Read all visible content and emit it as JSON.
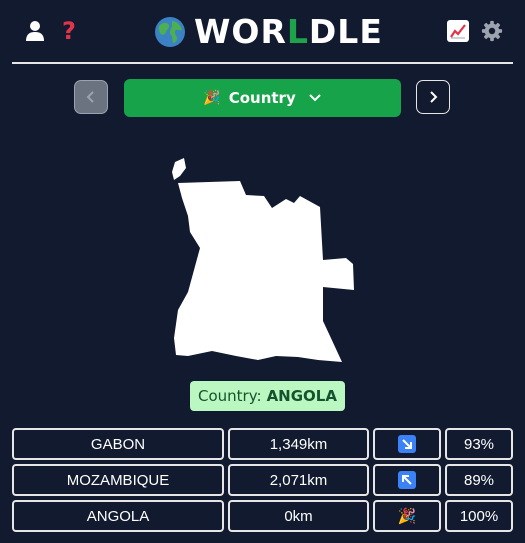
{
  "header": {
    "title_prefix": "WOR",
    "title_highlight": "L",
    "title_suffix": "DLE",
    "help_label": "?"
  },
  "nav": {
    "mode_emoji": "🎉",
    "mode_label": "Country"
  },
  "answer": {
    "label": "Country:",
    "value": "ANGOLA"
  },
  "guesses": [
    {
      "name": "GABON",
      "distance": "1,349km",
      "direction": "south-east-arrow-icon",
      "proximity": "93%"
    },
    {
      "name": "MOZAMBIQUE",
      "distance": "2,071km",
      "direction": "north-west-arrow-icon",
      "proximity": "89%"
    },
    {
      "name": "ANGOLA",
      "distance": "0km",
      "direction_emoji": "🎉",
      "proximity": "100%"
    }
  ],
  "colors": {
    "background": "#111a2e",
    "accent_green": "#16a34a",
    "answer_bg": "#bbf7c0",
    "help_red": "#e0344a",
    "direction_blue": "#3b82f6"
  }
}
